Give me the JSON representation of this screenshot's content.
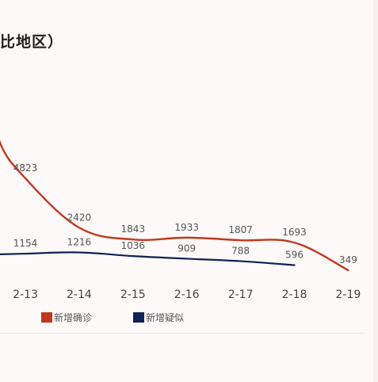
{
  "title": "比地区）",
  "chart_data": {
    "type": "line",
    "categories": [
      "2-13",
      "2-14",
      "2-15",
      "2-16",
      "2-17",
      "2-18",
      "2-19"
    ],
    "ylim": [
      0,
      13500
    ],
    "series": [
      {
        "name": "新增确诊",
        "color": "#c0391f",
        "values": [
          4823,
          2420,
          1843,
          1933,
          1807,
          1693,
          349
        ]
      },
      {
        "name": "新增疑似",
        "color": "#0f2354",
        "values": [
          1154,
          1216,
          1036,
          909,
          788,
          596,
          null
        ]
      }
    ]
  },
  "legend": [
    "新增确诊",
    "新增疑似"
  ]
}
